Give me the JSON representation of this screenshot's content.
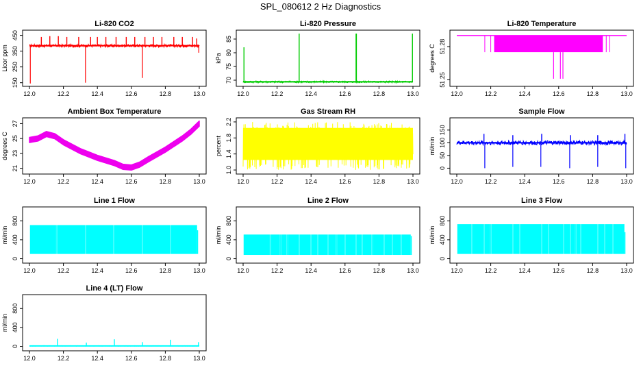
{
  "figure_title": "SPL_080612  2 Hz Diagnostics",
  "chart_data": [
    {
      "type": "line",
      "title": "Li-820 CO2",
      "xlabel": "",
      "ylabel": "Licor ppm",
      "color": "#ff0000",
      "xlim": [
        12.0,
        13.0
      ],
      "ylim": [
        140,
        470
      ],
      "x_ticks": [
        "12.0",
        "12.2",
        "12.4",
        "12.6",
        "12.8",
        "13.0"
      ],
      "y_ticks": [
        {
          "value": 150,
          "label": "150"
        },
        {
          "value": 250,
          "label": "250"
        },
        {
          "value": 350,
          "label": "350"
        },
        {
          "value": 450,
          "label": "450"
        }
      ],
      "series": [
        {
          "name": "CO2",
          "signal": "spiky",
          "base": 385,
          "band": [
            376,
            392
          ],
          "spikes": [
            [
              12.07,
              440
            ],
            [
              12.12,
              445
            ],
            [
              12.17,
              445
            ],
            [
              12.22,
              440
            ],
            [
              12.29,
              440
            ],
            [
              12.36,
              440
            ],
            [
              12.4,
              440
            ],
            [
              12.45,
              440
            ],
            [
              12.51,
              440
            ],
            [
              12.57,
              440
            ],
            [
              12.62,
              440
            ],
            [
              12.68,
              440
            ],
            [
              12.73,
              440
            ],
            [
              12.78,
              440
            ],
            [
              12.85,
              440
            ],
            [
              12.9,
              440
            ],
            [
              12.96,
              440
            ],
            [
              12.985,
              430
            ]
          ],
          "dips": [
            [
              12.005,
              145
            ],
            [
              12.33,
              150
            ],
            [
              12.665,
              180
            ],
            [
              12.997,
              340
            ]
          ]
        }
      ]
    },
    {
      "type": "line",
      "title": "Li-820 Pressure",
      "xlabel": "",
      "ylabel": "kPa",
      "color": "#00cc00",
      "xlim": [
        12.0,
        13.0
      ],
      "ylim": [
        68.5,
        87.5
      ],
      "x_ticks": [
        "12.0",
        "12.2",
        "12.4",
        "12.6",
        "12.8",
        "13.0"
      ],
      "y_ticks": [
        {
          "value": 70,
          "label": "70"
        },
        {
          "value": 75,
          "label": "75"
        },
        {
          "value": 80,
          "label": "80"
        },
        {
          "value": 85,
          "label": "85"
        }
      ],
      "series": [
        {
          "name": "Pressure",
          "signal": "spiky",
          "base": 69.4,
          "band": [
            69.1,
            69.7
          ],
          "spikes": [
            [
              12.005,
              82
            ],
            [
              12.33,
              87
            ],
            [
              12.665,
              87
            ],
            [
              12.667,
              87
            ],
            [
              12.997,
              87
            ]
          ],
          "dips": []
        }
      ]
    },
    {
      "type": "line",
      "title": "Li-820 Temperature",
      "xlabel": "",
      "ylabel": "degrees C",
      "color": "#ff00ff",
      "xlim": [
        12.0,
        13.0
      ],
      "ylim": [
        51.246,
        51.293
      ],
      "x_ticks": [
        "12.0",
        "12.2",
        "12.4",
        "12.6",
        "12.8",
        "13.0"
      ],
      "y_ticks": [
        {
          "value": 51.25,
          "label": "51.25"
        },
        {
          "value": 51.28,
          "label": "51.28"
        }
      ],
      "series": [
        {
          "name": "Temperature",
          "signal": "step",
          "levels": [
            51.29,
            51.275,
            51.26,
            51.251
          ],
          "active": [
            12.22,
            12.86
          ],
          "deep_dips": [
            12.57,
            12.61,
            12.625
          ]
        }
      ]
    },
    {
      "type": "line",
      "title": "Ambient Box Temperature",
      "xlabel": "",
      "ylabel": "degrees C",
      "color": "#ee00ee",
      "xlim": [
        12.0,
        13.0
      ],
      "ylim": [
        20.5,
        27.5
      ],
      "x_ticks": [
        "12.0",
        "12.2",
        "12.4",
        "12.6",
        "12.8",
        "13.0"
      ],
      "y_ticks": [
        {
          "value": 21,
          "label": "21"
        },
        {
          "value": 23,
          "label": "23"
        },
        {
          "value": 25,
          "label": "25"
        },
        {
          "value": 27,
          "label": "27"
        }
      ],
      "series": [
        {
          "name": "Ambient",
          "signal": "curve",
          "band": 0.35,
          "points": [
            [
              12.0,
              24.8
            ],
            [
              12.05,
              25.0
            ],
            [
              12.1,
              25.6
            ],
            [
              12.15,
              25.3
            ],
            [
              12.2,
              24.5
            ],
            [
              12.3,
              23.3
            ],
            [
              12.4,
              22.4
            ],
            [
              12.5,
              21.7
            ],
            [
              12.55,
              21.2
            ],
            [
              12.6,
              21.1
            ],
            [
              12.65,
              21.5
            ],
            [
              12.7,
              22.2
            ],
            [
              12.8,
              23.5
            ],
            [
              12.9,
              25.0
            ],
            [
              12.95,
              25.9
            ],
            [
              13.0,
              27.0
            ]
          ]
        }
      ]
    },
    {
      "type": "line",
      "title": "Gas Stream RH",
      "xlabel": "",
      "ylabel": "percent",
      "color": "#ffff00",
      "xlim": [
        12.0,
        13.0
      ],
      "ylim": [
        0.95,
        2.25
      ],
      "x_ticks": [
        "12.0",
        "12.2",
        "12.4",
        "12.6",
        "12.8",
        "13.0"
      ],
      "y_ticks": [
        {
          "value": 1.0,
          "label": "1.0"
        },
        {
          "value": 1.4,
          "label": "1.4"
        },
        {
          "value": 1.8,
          "label": "1.8"
        },
        {
          "value": 2.2,
          "label": "2.2"
        }
      ],
      "series": [
        {
          "name": "RH",
          "signal": "noise",
          "range": [
            1.0,
            2.2
          ],
          "core": [
            1.25,
            2.05
          ]
        }
      ]
    },
    {
      "type": "line",
      "title": "Sample Flow",
      "xlabel": "",
      "ylabel": "ml/min",
      "color": "#0000ff",
      "xlim": [
        12.0,
        13.0
      ],
      "ylim": [
        -15,
        190
      ],
      "x_ticks": [
        "12.0",
        "12.2",
        "12.4",
        "12.6",
        "12.8",
        "13.0"
      ],
      "y_ticks": [
        {
          "value": 0,
          "label": "0"
        },
        {
          "value": 50,
          "label": "50"
        },
        {
          "value": 100,
          "label": "100"
        },
        {
          "value": 150,
          "label": "150"
        }
      ],
      "series": [
        {
          "name": "Flow",
          "signal": "spiky",
          "base": 100,
          "band": [
            92,
            108
          ],
          "spikes": [
            [
              12.16,
              135
            ],
            [
              12.33,
              130
            ],
            [
              12.5,
              135
            ],
            [
              12.67,
              130
            ],
            [
              12.83,
              130
            ],
            [
              12.99,
              135
            ]
          ],
          "dips": [
            [
              12.165,
              0
            ],
            [
              12.33,
              5
            ],
            [
              12.495,
              5
            ],
            [
              12.665,
              0
            ],
            [
              12.83,
              5
            ],
            [
              12.995,
              0
            ]
          ]
        }
      ]
    },
    {
      "type": "line",
      "title": "Line 1 Flow",
      "xlabel": "",
      "ylabel": "ml/min",
      "color": "#00ffff",
      "xlim": [
        12.0,
        13.0
      ],
      "ylim": [
        -50,
        1050
      ],
      "x_ticks": [
        "12.0",
        "12.2",
        "12.4",
        "12.6",
        "12.8",
        "13.0"
      ],
      "y_ticks": [
        {
          "value": 0,
          "label": "0"
        },
        {
          "value": 400,
          "label": "400"
        },
        {
          "value": 800,
          "label": "800"
        }
      ],
      "series": [
        {
          "name": "Line 1",
          "signal": "band",
          "low": 100,
          "high": 710,
          "gaps": [
            12.16,
            12.33,
            12.495,
            12.665,
            12.83
          ],
          "end": [
            12.99,
            600
          ]
        }
      ]
    },
    {
      "type": "line",
      "title": "Line 2 Flow",
      "xlabel": "",
      "ylabel": "ml/min",
      "color": "#00ffff",
      "xlim": [
        12.0,
        13.0
      ],
      "ylim": [
        -50,
        1050
      ],
      "x_ticks": [
        "12.0",
        "12.2",
        "12.4",
        "12.6",
        "12.8",
        "13.0"
      ],
      "y_ticks": [
        {
          "value": 0,
          "label": "0"
        },
        {
          "value": 400,
          "label": "400"
        },
        {
          "value": 800,
          "label": "800"
        }
      ],
      "series": [
        {
          "name": "Line 2",
          "signal": "band",
          "low": 80,
          "high": 510,
          "gaps": [
            12.16,
            12.22,
            12.26,
            12.33,
            12.4,
            12.44,
            12.5,
            12.55,
            12.6,
            12.665,
            12.7,
            12.76,
            12.83,
            12.88,
            12.93
          ],
          "end": [
            12.99,
            480
          ]
        }
      ]
    },
    {
      "type": "line",
      "title": "Line 3 Flow",
      "xlabel": "",
      "ylabel": "ml/min",
      "color": "#00ffff",
      "xlim": [
        12.0,
        13.0
      ],
      "ylim": [
        -50,
        1050
      ],
      "x_ticks": [
        "12.0",
        "12.2",
        "12.4",
        "12.6",
        "12.8",
        "13.0"
      ],
      "y_ticks": [
        {
          "value": 0,
          "label": "0"
        },
        {
          "value": 400,
          "label": "400"
        },
        {
          "value": 800,
          "label": "800"
        }
      ],
      "series": [
        {
          "name": "Line 3",
          "signal": "band",
          "low": 100,
          "high": 730,
          "gaps": [
            12.09,
            12.16,
            12.2,
            12.33,
            12.37,
            12.5,
            12.54,
            12.63,
            12.67,
            12.7,
            12.73,
            12.83,
            12.87,
            12.92
          ],
          "end": [
            12.99,
            560
          ]
        }
      ]
    },
    {
      "type": "line",
      "title": "Line 4 (LT) Flow",
      "xlabel": "",
      "ylabel": "ml/min",
      "color": "#00ffff",
      "xlim": [
        12.0,
        13.0
      ],
      "ylim": [
        -50,
        1050
      ],
      "x_ticks": [
        "12.0",
        "12.2",
        "12.4",
        "12.6",
        "12.8",
        "13.0"
      ],
      "y_ticks": [
        {
          "value": 0,
          "label": "0"
        },
        {
          "value": 400,
          "label": "400"
        },
        {
          "value": 800,
          "label": "800"
        }
      ],
      "series": [
        {
          "name": "Line 4",
          "signal": "spiky",
          "base": 10,
          "band": [
            5,
            15
          ],
          "spikes": [
            [
              12.165,
              160
            ],
            [
              12.335,
              80
            ],
            [
              12.5,
              150
            ],
            [
              12.665,
              90
            ],
            [
              12.83,
              140
            ],
            [
              12.995,
              90
            ]
          ],
          "dips": []
        }
      ]
    }
  ]
}
